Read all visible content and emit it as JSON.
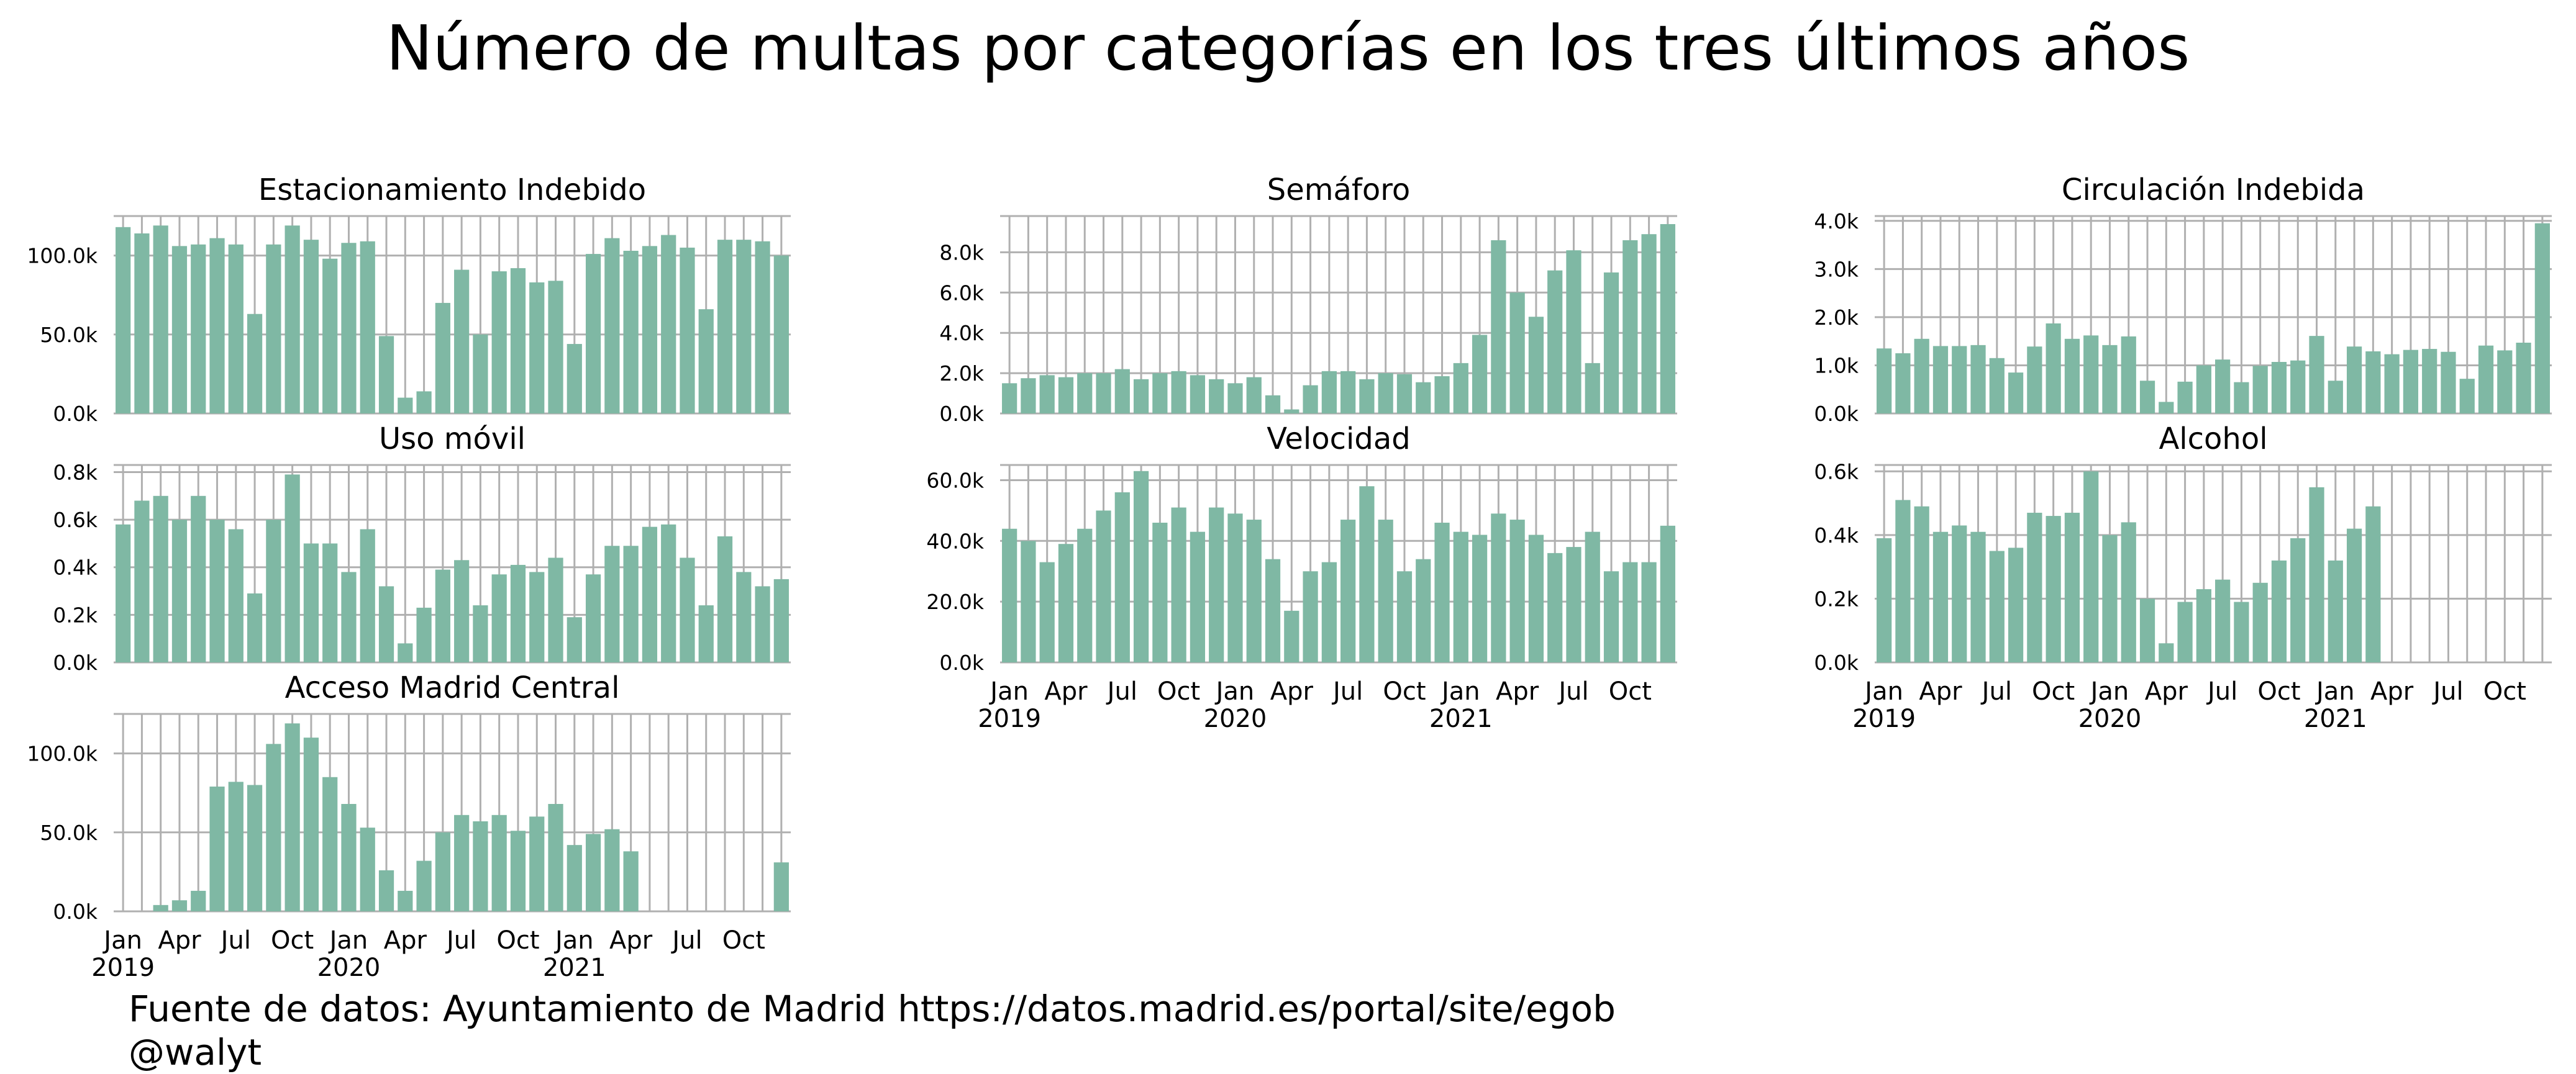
{
  "title": "Número de multas por categorías en los tres últimos años",
  "footer": {
    "source": "Fuente de datos: Ayuntamiento de Madrid https://datos.madrid.es/portal/site/egob",
    "author": "@walyt"
  },
  "colors": {
    "bar": "#7fb8a4",
    "grid": "#b0b0b0"
  },
  "x_axis": {
    "tick_labels": [
      "Jan",
      "Apr",
      "Jul",
      "Oct",
      "Jan",
      "Apr",
      "Jul",
      "Oct",
      "Jan",
      "Apr",
      "Jul",
      "Oct"
    ],
    "year_labels": [
      "2019",
      "2020",
      "2021"
    ]
  },
  "chart_data": [
    {
      "type": "bar",
      "title": "Estacionamiento Indebido",
      "x": [
        "2019-01",
        "2019-02",
        "2019-03",
        "2019-04",
        "2019-05",
        "2019-06",
        "2019-07",
        "2019-08",
        "2019-09",
        "2019-10",
        "2019-11",
        "2019-12",
        "2020-01",
        "2020-02",
        "2020-03",
        "2020-04",
        "2020-05",
        "2020-06",
        "2020-07",
        "2020-08",
        "2020-09",
        "2020-10",
        "2020-11",
        "2020-12",
        "2021-01",
        "2021-02",
        "2021-03",
        "2021-04",
        "2021-05",
        "2021-06",
        "2021-07",
        "2021-08",
        "2021-09",
        "2021-10",
        "2021-11",
        "2021-12"
      ],
      "values": [
        118000,
        114000,
        119000,
        106000,
        107000,
        111000,
        107000,
        63000,
        107000,
        119000,
        110000,
        98000,
        108000,
        109000,
        49000,
        10000,
        14000,
        70000,
        91000,
        50000,
        90000,
        92000,
        83000,
        84000,
        44000,
        101000,
        111000,
        103000,
        106000,
        113000,
        105000,
        66000,
        110000,
        110000,
        109000,
        100000
      ],
      "yticks": [
        "0.0k",
        "50.0k",
        "100.0k"
      ],
      "ylim": [
        0,
        125000
      ],
      "grid": true
    },
    {
      "type": "bar",
      "title": "Semáforo",
      "x": [
        "2019-01",
        "2019-02",
        "2019-03",
        "2019-04",
        "2019-05",
        "2019-06",
        "2019-07",
        "2019-08",
        "2019-09",
        "2019-10",
        "2019-11",
        "2019-12",
        "2020-01",
        "2020-02",
        "2020-03",
        "2020-04",
        "2020-05",
        "2020-06",
        "2020-07",
        "2020-08",
        "2020-09",
        "2020-10",
        "2020-11",
        "2020-12",
        "2021-01",
        "2021-02",
        "2021-03",
        "2021-04",
        "2021-05",
        "2021-06",
        "2021-07",
        "2021-08",
        "2021-09",
        "2021-10",
        "2021-11",
        "2021-12"
      ],
      "values": [
        1500,
        1750,
        1900,
        1800,
        2000,
        2000,
        2200,
        1700,
        2000,
        2100,
        1900,
        1700,
        1500,
        1800,
        900,
        200,
        1400,
        2100,
        2100,
        1700,
        2000,
        1950,
        1550,
        1850,
        2500,
        3900,
        8600,
        6000,
        4800,
        7100,
        8100,
        2500,
        7000,
        8600,
        8900,
        9400
      ],
      "yticks": [
        "0.0k",
        "2.0k",
        "4.0k",
        "6.0k",
        "8.0k"
      ],
      "ylim": [
        0,
        9800
      ],
      "grid": true
    },
    {
      "type": "bar",
      "title": "Circulación Indebida",
      "x": [
        "2019-01",
        "2019-02",
        "2019-03",
        "2019-04",
        "2019-05",
        "2019-06",
        "2019-07",
        "2019-08",
        "2019-09",
        "2019-10",
        "2019-11",
        "2019-12",
        "2020-01",
        "2020-02",
        "2020-03",
        "2020-04",
        "2020-05",
        "2020-06",
        "2020-07",
        "2020-08",
        "2020-09",
        "2020-10",
        "2020-11",
        "2020-12",
        "2021-01",
        "2021-02",
        "2021-03",
        "2021-04",
        "2021-05",
        "2021-06",
        "2021-07",
        "2021-08",
        "2021-09",
        "2021-10",
        "2021-11",
        "2021-12"
      ],
      "values": [
        1350,
        1250,
        1550,
        1400,
        1400,
        1420,
        1150,
        850,
        1390,
        1870,
        1550,
        1620,
        1420,
        1600,
        680,
        240,
        660,
        1000,
        1120,
        650,
        990,
        1070,
        1100,
        1610,
        680,
        1390,
        1290,
        1230,
        1320,
        1340,
        1280,
        720,
        1410,
        1310,
        1470,
        3950
      ],
      "yticks": [
        "0.0k",
        "1.0k",
        "2.0k",
        "3.0k",
        "4.0k"
      ],
      "ylim": [
        0,
        4100
      ],
      "grid": true
    },
    {
      "type": "bar",
      "title": "Uso móvil",
      "x": [
        "2019-01",
        "2019-02",
        "2019-03",
        "2019-04",
        "2019-05",
        "2019-06",
        "2019-07",
        "2019-08",
        "2019-09",
        "2019-10",
        "2019-11",
        "2019-12",
        "2020-01",
        "2020-02",
        "2020-03",
        "2020-04",
        "2020-05",
        "2020-06",
        "2020-07",
        "2020-08",
        "2020-09",
        "2020-10",
        "2020-11",
        "2020-12",
        "2021-01",
        "2021-02",
        "2021-03",
        "2021-04",
        "2021-05",
        "2021-06",
        "2021-07",
        "2021-08",
        "2021-09",
        "2021-10",
        "2021-11",
        "2021-12"
      ],
      "values": [
        580,
        680,
        700,
        600,
        700,
        600,
        560,
        290,
        600,
        790,
        500,
        500,
        380,
        560,
        320,
        80,
        230,
        390,
        430,
        240,
        370,
        410,
        380,
        440,
        190,
        370,
        490,
        490,
        570,
        580,
        440,
        240,
        530,
        380,
        320,
        350
      ],
      "yticks": [
        "0.0k",
        "0.2k",
        "0.4k",
        "0.6k",
        "0.8k"
      ],
      "ylim": [
        0,
        830
      ],
      "grid": true
    },
    {
      "type": "bar",
      "title": "Velocidad",
      "x": [
        "2019-01",
        "2019-02",
        "2019-03",
        "2019-04",
        "2019-05",
        "2019-06",
        "2019-07",
        "2019-08",
        "2019-09",
        "2019-10",
        "2019-11",
        "2019-12",
        "2020-01",
        "2020-02",
        "2020-03",
        "2020-04",
        "2020-05",
        "2020-06",
        "2020-07",
        "2020-08",
        "2020-09",
        "2020-10",
        "2020-11",
        "2020-12",
        "2021-01",
        "2021-02",
        "2021-03",
        "2021-04",
        "2021-05",
        "2021-06",
        "2021-07",
        "2021-08",
        "2021-09",
        "2021-10",
        "2021-11",
        "2021-12"
      ],
      "values": [
        44000,
        40000,
        33000,
        39000,
        44000,
        50000,
        56000,
        63000,
        46000,
        51000,
        43000,
        51000,
        49000,
        47000,
        34000,
        17000,
        30000,
        33000,
        47000,
        58000,
        47000,
        30000,
        34000,
        46000,
        43000,
        42000,
        49000,
        47000,
        42000,
        36000,
        38000,
        43000,
        30000,
        33000,
        33000,
        45000
      ],
      "yticks": [
        "0.0k",
        "20.0k",
        "40.0k",
        "60.0k"
      ],
      "ylim": [
        0,
        65000
      ],
      "grid": true
    },
    {
      "type": "bar",
      "title": "Alcohol",
      "x": [
        "2019-01",
        "2019-02",
        "2019-03",
        "2019-04",
        "2019-05",
        "2019-06",
        "2019-07",
        "2019-08",
        "2019-09",
        "2019-10",
        "2019-11",
        "2019-12",
        "2020-01",
        "2020-02",
        "2020-03",
        "2020-04",
        "2020-05",
        "2020-06",
        "2020-07",
        "2020-08",
        "2020-09",
        "2020-10",
        "2020-11",
        "2020-12",
        "2021-01",
        "2021-02",
        "2021-03",
        "2021-04",
        "2021-05",
        "2021-06",
        "2021-07",
        "2021-08",
        "2021-09",
        "2021-10",
        "2021-11",
        "2021-12"
      ],
      "values": [
        390,
        510,
        490,
        410,
        430,
        410,
        350,
        360,
        470,
        460,
        470,
        600,
        400,
        440,
        200,
        60,
        190,
        230,
        260,
        190,
        250,
        320,
        390,
        550,
        320,
        420,
        490,
        null,
        null,
        null,
        null,
        null,
        null,
        null,
        null,
        null
      ],
      "yticks": [
        "0.0k",
        "0.2k",
        "0.4k",
        "0.6k"
      ],
      "ylim": [
        0,
        620
      ],
      "grid": true
    },
    {
      "type": "bar",
      "title": "Acceso Madrid Central",
      "x": [
        "2019-01",
        "2019-02",
        "2019-03",
        "2019-04",
        "2019-05",
        "2019-06",
        "2019-07",
        "2019-08",
        "2019-09",
        "2019-10",
        "2019-11",
        "2019-12",
        "2020-01",
        "2020-02",
        "2020-03",
        "2020-04",
        "2020-05",
        "2020-06",
        "2020-07",
        "2020-08",
        "2020-09",
        "2020-10",
        "2020-11",
        "2020-12",
        "2021-01",
        "2021-02",
        "2021-03",
        "2021-04",
        "2021-05",
        "2021-06",
        "2021-07",
        "2021-08",
        "2021-09",
        "2021-10",
        "2021-11",
        "2021-12"
      ],
      "values": [
        null,
        null,
        4000,
        7000,
        13000,
        79000,
        82000,
        80000,
        106000,
        119000,
        110000,
        85000,
        68000,
        53000,
        26000,
        13000,
        32000,
        50000,
        61000,
        57000,
        61000,
        51000,
        60000,
        68000,
        42000,
        49000,
        52000,
        38000,
        null,
        null,
        null,
        null,
        null,
        null,
        null,
        31000
      ],
      "yticks": [
        "0.0k",
        "50.0k",
        "100.0k"
      ],
      "ylim": [
        0,
        125000
      ],
      "grid": true
    }
  ]
}
